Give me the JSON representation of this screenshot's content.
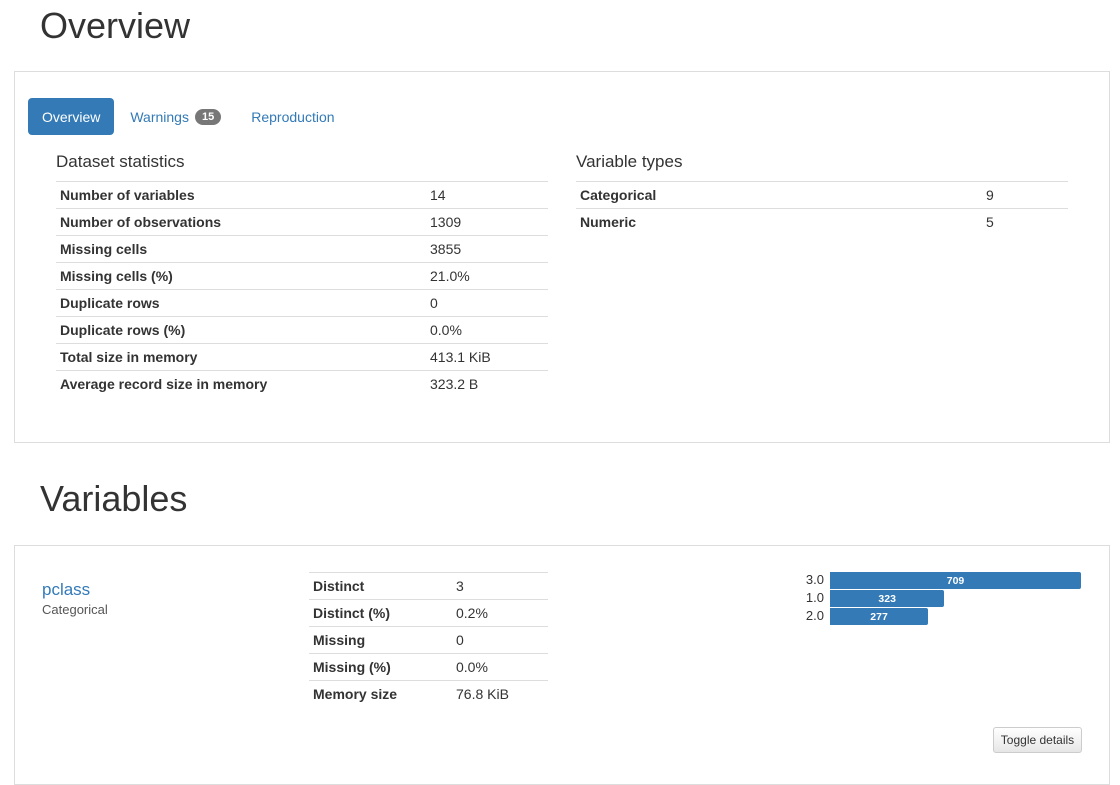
{
  "overview_title": "Overview",
  "tabs": [
    {
      "label": "Overview",
      "active": true
    },
    {
      "label": "Warnings",
      "badge": "15"
    },
    {
      "label": "Reproduction"
    }
  ],
  "dataset_statistics": {
    "title": "Dataset statistics",
    "rows": [
      {
        "key": "Number of variables",
        "value": "14"
      },
      {
        "key": "Number of observations",
        "value": "1309"
      },
      {
        "key": "Missing cells",
        "value": "3855"
      },
      {
        "key": "Missing cells (%)",
        "value": "21.0%"
      },
      {
        "key": "Duplicate rows",
        "value": "0"
      },
      {
        "key": "Duplicate rows (%)",
        "value": "0.0%"
      },
      {
        "key": "Total size in memory",
        "value": "413.1 KiB"
      },
      {
        "key": "Average record size in memory",
        "value": "323.2 B"
      }
    ]
  },
  "variable_types": {
    "title": "Variable types",
    "rows": [
      {
        "key": "Categorical",
        "value": "9"
      },
      {
        "key": "Numeric",
        "value": "5"
      }
    ]
  },
  "variables_title": "Variables",
  "variable": {
    "name": "pclass",
    "type": "Categorical",
    "stats": [
      {
        "key": "Distinct",
        "value": "3"
      },
      {
        "key": "Distinct (%)",
        "value": "0.2%"
      },
      {
        "key": "Missing",
        "value": "0"
      },
      {
        "key": "Missing (%)",
        "value": "0.0%"
      },
      {
        "key": "Memory size",
        "value": "76.8 KiB"
      }
    ],
    "toggle_label": "Toggle details"
  },
  "chart_data": {
    "type": "bar",
    "orientation": "horizontal",
    "categories": [
      "3.0",
      "1.0",
      "2.0"
    ],
    "values": [
      709,
      323,
      277
    ],
    "color": "#337ab7"
  }
}
